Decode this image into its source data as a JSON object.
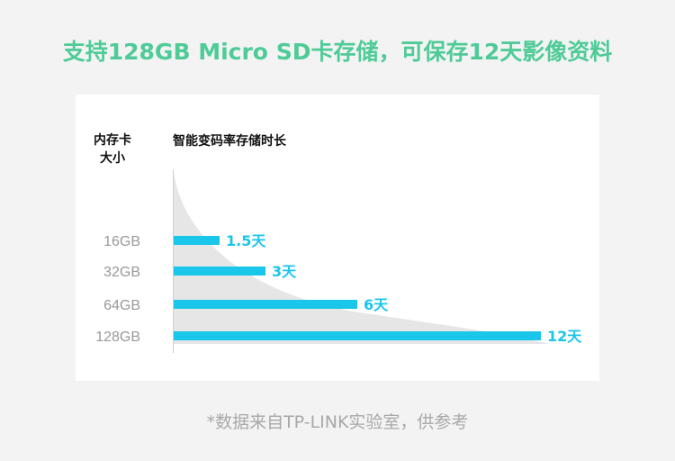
{
  "header": {
    "title": "支持128GB Micro SD卡存储，可保存12天影像资料"
  },
  "footer": {
    "note": "*数据来自TP-LINK实验室，供参考"
  },
  "chart_data": {
    "type": "bar",
    "orientation": "horizontal",
    "ylabel": "内存卡大小",
    "ylabel_lines": [
      "内存卡",
      "大小"
    ],
    "xlabel": "智能变码率存储时长",
    "categories": [
      "16GB",
      "32GB",
      "64GB",
      "128GB"
    ],
    "values": [
      1.5,
      3,
      6,
      12
    ],
    "data_labels": [
      "1.5天",
      "3天",
      "6天",
      "12天"
    ],
    "unit": "天",
    "xlim": [
      0,
      12
    ],
    "grid": false,
    "colors": {
      "bar": "#1ac6ea",
      "label": "#1ac6ea",
      "area": "#e6e6e6",
      "title": "#4fcb98"
    }
  }
}
